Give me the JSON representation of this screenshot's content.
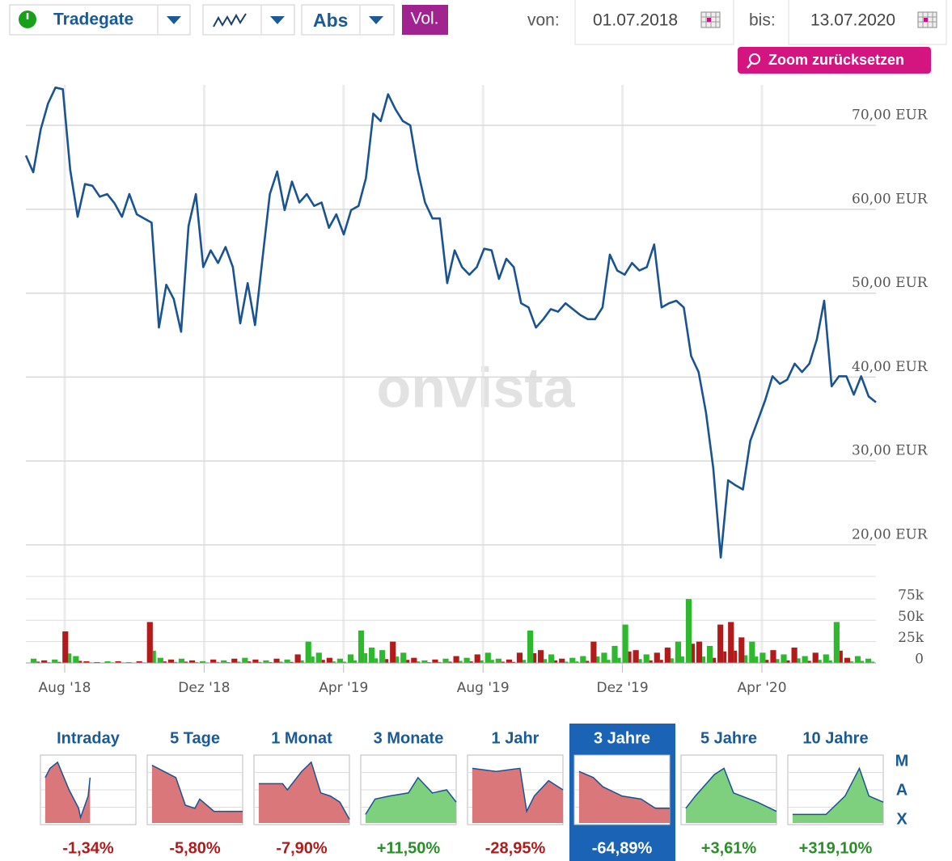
{
  "toolbar": {
    "exchange": "Tradegate",
    "mode": "Abs",
    "volume_button": "Vol.",
    "from_label": "von:",
    "from_date": "01.07.2018",
    "to_label": "bis:",
    "to_date": "13.07.2020",
    "zoom_reset": "Zoom zurücksetzen"
  },
  "watermark": "onvista",
  "price_chart": {
    "type": "line",
    "color": "#1a5391",
    "values": [
      66.4,
      64.4,
      69.5,
      72.6,
      74.5,
      74.3,
      64.7,
      59.1,
      63.0,
      62.8,
      61.5,
      61.8,
      60.7,
      59.1,
      61.8,
      59.4,
      58.9,
      58.4,
      45.9,
      51.0,
      49.3,
      45.4,
      58.0,
      61.8,
      53.1,
      55.1,
      53.6,
      55.5,
      53.1,
      46.4,
      51.2,
      46.2,
      54.1,
      61.8,
      64.5,
      59.9,
      63.3,
      60.8,
      61.8,
      60.4,
      60.8,
      57.8,
      59.4,
      57.0,
      59.9,
      60.4,
      63.7,
      71.4,
      70.5,
      73.7,
      71.9,
      70.5,
      70.0,
      64.7,
      60.8,
      58.9,
      58.9,
      51.2,
      55.1,
      53.1,
      52.2,
      53.1,
      55.3,
      55.1,
      51.7,
      54.1,
      53.1,
      48.8,
      48.3,
      45.9,
      46.9,
      48.1,
      47.8,
      48.8,
      48.1,
      47.4,
      46.9,
      46.9,
      48.3,
      54.6,
      52.7,
      52.2,
      53.6,
      52.7,
      53.1,
      55.8,
      48.3,
      48.8,
      49.1,
      48.3,
      42.5,
      40.6,
      35.8,
      29.1,
      18.5,
      27.7,
      27.1,
      26.6,
      32.4,
      34.8,
      37.2,
      40.1,
      39.2,
      39.7,
      41.6,
      40.6,
      41.6,
      44.5,
      49.1,
      38.9,
      40.1,
      40.1,
      37.9,
      40.1,
      37.7,
      37.0
    ],
    "ylim": [
      17.5,
      75.3
    ],
    "yticks": [
      {
        "value": 20,
        "label": "20,00 EUR"
      },
      {
        "value": 30,
        "label": "30,00 EUR"
      },
      {
        "value": 40,
        "label": "40,00 EUR"
      },
      {
        "value": 50,
        "label": "50,00 EUR"
      },
      {
        "value": 60,
        "label": "60,00 EUR"
      },
      {
        "value": 70,
        "label": "70,00 EUR"
      }
    ],
    "xticks": [
      "Aug '18",
      "Dez '18",
      "Apr '19",
      "Aug '19",
      "Dez '19",
      "Apr '20"
    ],
    "grid": true
  },
  "volume_chart": {
    "type": "bar",
    "values": [
      5,
      3,
      4,
      37,
      8,
      2,
      1,
      2,
      2,
      1,
      2,
      48,
      6,
      4,
      5,
      3,
      2,
      4,
      3,
      5,
      6,
      4,
      3,
      5,
      4,
      10,
      25,
      12,
      6,
      5,
      10,
      38,
      18,
      15,
      25,
      12,
      6,
      3,
      4,
      5,
      8,
      6,
      10,
      12,
      5,
      4,
      12,
      38,
      15,
      10,
      5,
      6,
      8,
      25,
      12,
      20,
      45,
      15,
      10,
      12,
      18,
      25,
      75,
      25,
      20,
      45,
      48,
      30,
      25,
      12,
      15,
      10,
      18,
      8,
      12,
      10,
      48,
      6,
      8,
      5
    ],
    "colors": [
      "#2db82d",
      "#b31b1b",
      "#2db82d",
      "#b31b1b",
      "#2db82d",
      "#b31b1b",
      "#b31b1b",
      "#2db82d",
      "#b31b1b",
      "#2db82d",
      "#b31b1b",
      "#b31b1b",
      "#2db82d",
      "#b31b1b",
      "#2db82d",
      "#b31b1b",
      "#2db82d",
      "#b31b1b",
      "#2db82d",
      "#b31b1b",
      "#2db82d",
      "#b31b1b",
      "#2db82d",
      "#b31b1b",
      "#2db82d",
      "#b31b1b",
      "#2db82d",
      "#2db82d",
      "#b31b1b",
      "#2db82d",
      "#2db82d",
      "#2db82d",
      "#2db82d",
      "#2db82d",
      "#b31b1b",
      "#2db82d",
      "#b31b1b",
      "#2db82d",
      "#b31b1b",
      "#2db82d",
      "#b31b1b",
      "#2db82d",
      "#b31b1b",
      "#2db82d",
      "#2db82d",
      "#b31b1b",
      "#b31b1b",
      "#2db82d",
      "#b31b1b",
      "#2db82d",
      "#b31b1b",
      "#2db82d",
      "#2db82d",
      "#b31b1b",
      "#2db82d",
      "#2db82d",
      "#2db82d",
      "#b31b1b",
      "#2db82d",
      "#b31b1b",
      "#b31b1b",
      "#2db82d",
      "#2db82d",
      "#b31b1b",
      "#2db82d",
      "#b31b1b",
      "#b31b1b",
      "#b31b1b",
      "#2db82d",
      "#2db82d",
      "#b31b1b",
      "#2db82d",
      "#b31b1b",
      "#2db82d",
      "#b31b1b",
      "#2db82d",
      "#2db82d",
      "#b31b1b",
      "#2db82d",
      "#2db82d"
    ],
    "ylim": [
      0,
      101.5
    ],
    "yticks": [
      0,
      {
        "value": 25,
        "label": "25k"
      },
      {
        "value": 50,
        "label": "50k"
      },
      {
        "value": 75,
        "label": "75k"
      }
    ]
  },
  "periods": {
    "selected": 5,
    "items": [
      {
        "label": "Intraday",
        "change": "-1,34%"
      },
      {
        "label": "5 Tage",
        "change": "-5,80%"
      },
      {
        "label": "1 Monat",
        "change": "-7,90%"
      },
      {
        "label": "3 Monate",
        "change": "+11,50%"
      },
      {
        "label": "1 Jahr",
        "change": "-28,95%"
      },
      {
        "label": "3 Jahre",
        "change": "-64,89%"
      },
      {
        "label": "5 Jahre",
        "change": "+3,61%"
      },
      {
        "label": "10 Jahre",
        "change": "+319,10%"
      }
    ],
    "max": [
      "M",
      "A",
      "X"
    ]
  }
}
